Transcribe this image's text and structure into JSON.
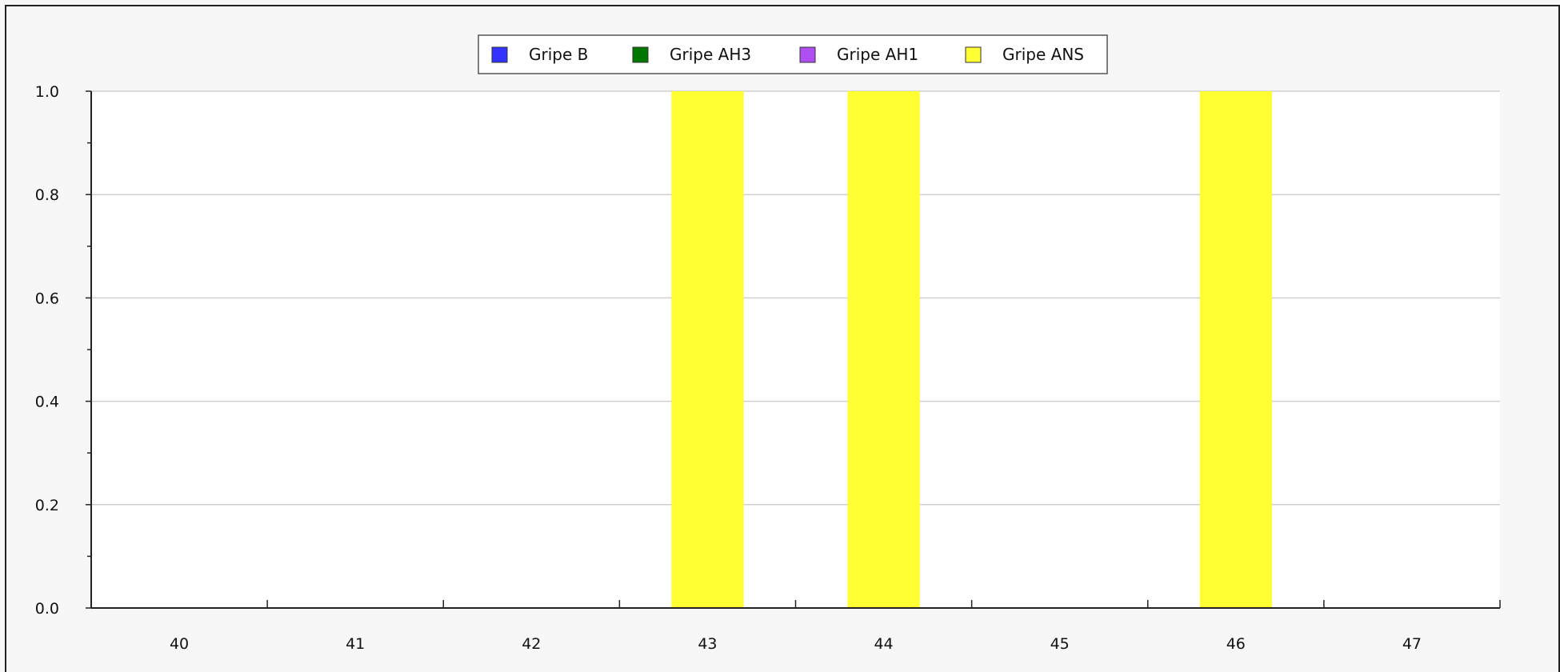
{
  "chart_data": {
    "type": "bar",
    "categories": [
      "40",
      "41",
      "42",
      "43",
      "44",
      "45",
      "46",
      "47"
    ],
    "series": [
      {
        "name": "Gripe B",
        "color": "#3333ff",
        "values": [
          0,
          0,
          0,
          0,
          0,
          0,
          0,
          0
        ]
      },
      {
        "name": "Gripe AH3",
        "color": "#007700",
        "values": [
          0,
          0,
          0,
          0,
          0,
          0,
          0,
          0
        ]
      },
      {
        "name": "Gripe AH1",
        "color": "#b04ff0",
        "values": [
          0,
          0,
          0,
          0,
          0,
          0,
          0,
          0
        ]
      },
      {
        "name": "Gripe ANS",
        "color": "#ffff33",
        "values": [
          0,
          0,
          0,
          1,
          1,
          0,
          1,
          0
        ]
      }
    ],
    "ylim": [
      0,
      1
    ],
    "yticks": [
      "0.0",
      "0.2",
      "0.4",
      "0.6",
      "0.8",
      "1.0"
    ],
    "grid": true,
    "legend_position": "top-center",
    "stacked": true
  }
}
